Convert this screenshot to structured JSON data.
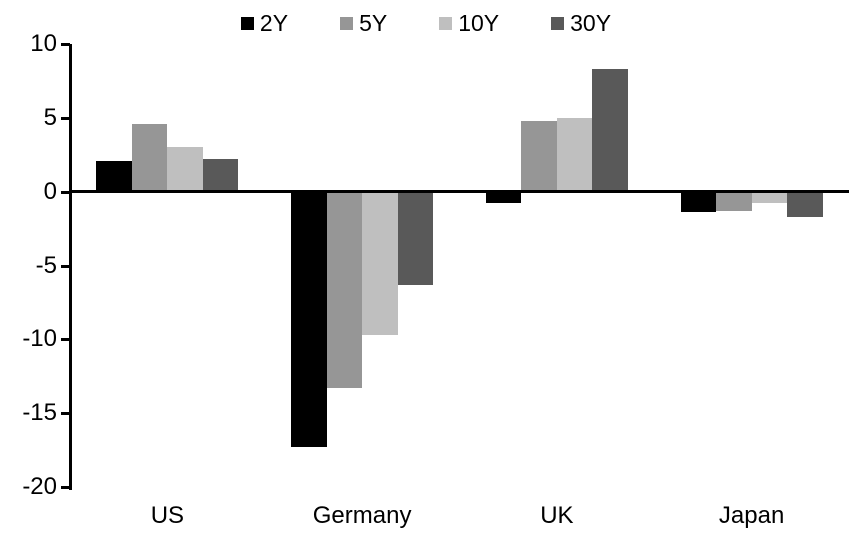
{
  "chart_data": {
    "type": "bar",
    "title": "",
    "xlabel": "",
    "ylabel": "",
    "categories": [
      "US",
      "Germany",
      "UK",
      "Japan"
    ],
    "series": [
      {
        "name": "2Y",
        "color": "#000000",
        "values": [
          2.1,
          -17.3,
          -0.8,
          -1.4
        ]
      },
      {
        "name": "5Y",
        "color": "#969696",
        "values": [
          4.6,
          -13.3,
          4.8,
          -1.3
        ]
      },
      {
        "name": "10Y",
        "color": "#BFBFBF",
        "values": [
          3.0,
          -9.7,
          5.0,
          -0.8
        ]
      },
      {
        "name": "30Y",
        "color": "#595959",
        "values": [
          2.2,
          -6.3,
          8.3,
          -1.7
        ]
      }
    ],
    "ylim": [
      -20,
      10
    ],
    "yticks": [
      10,
      5,
      0,
      -5,
      -10,
      -15,
      -20
    ],
    "ytick_step": 5,
    "legend_position": "top",
    "grid": false,
    "zero_line": true,
    "axis_color": "#000000",
    "background_color": "#ffffff",
    "text_color": "#000000"
  }
}
